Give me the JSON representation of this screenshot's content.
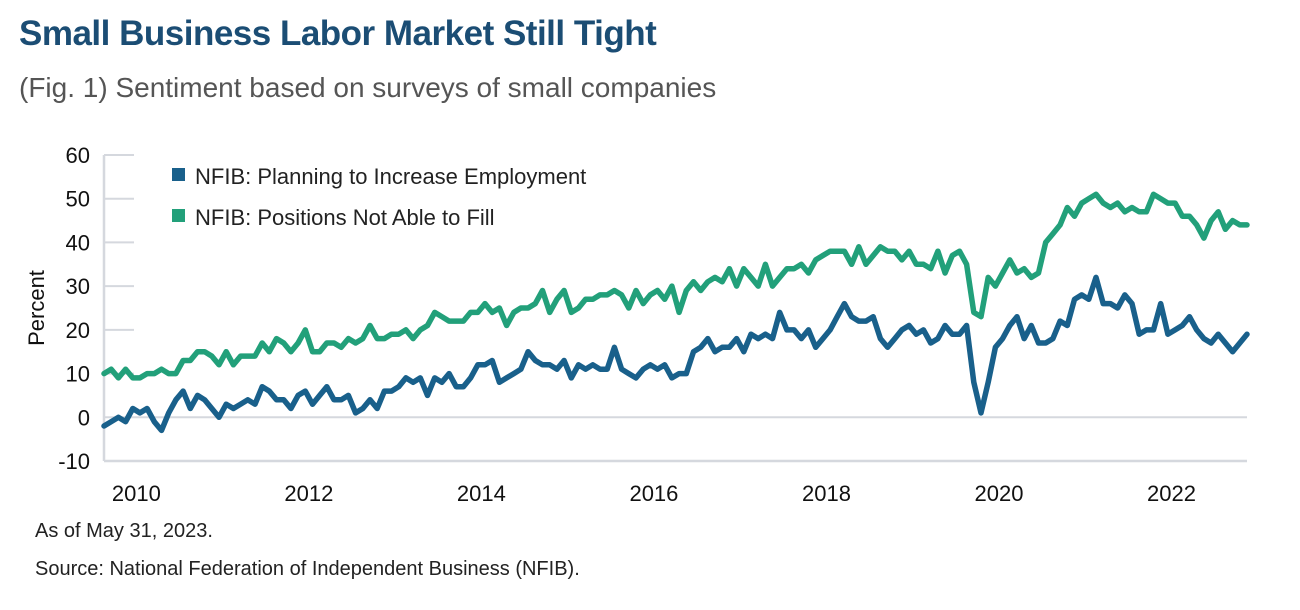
{
  "title": "Small Business Labor Market Still Tight",
  "subtitle": "(Fig. 1) Sentiment based on surveys of small companies",
  "footer": {
    "as_of": "As of May 31, 2023.",
    "source": "Source: National Federation of Independent Business (NFIB)."
  },
  "colors": {
    "title": "#1b4d74",
    "series_employment": "#19608b",
    "series_positions": "#22a07a",
    "axis": "#d5d8de"
  },
  "chart_data": {
    "type": "line",
    "title": "Small Business Labor Market Still Tight",
    "subtitle": "(Fig. 1) Sentiment based on surveys of small companies",
    "xlabel": "",
    "ylabel": "Percent",
    "ylim": [
      -10,
      60
    ],
    "yticks": [
      60,
      50,
      40,
      30,
      20,
      10,
      0,
      -10
    ],
    "xticks": [
      "2010",
      "2012",
      "2014",
      "2016",
      "2018",
      "2020",
      "2022"
    ],
    "x_start": "2010-02",
    "x_end": "2023-05",
    "frequency": "monthly",
    "grid": false,
    "zero_line": true,
    "legend_position": "top-left",
    "series": [
      {
        "name": "NFIB: Planning to Increase Employment",
        "color": "#19608b",
        "values": [
          -2,
          -1,
          0,
          -1,
          2,
          1,
          2,
          -1,
          -3,
          1,
          4,
          6,
          2,
          5,
          4,
          2,
          0,
          3,
          2,
          3,
          4,
          3,
          7,
          6,
          4,
          4,
          2,
          5,
          6,
          3,
          5,
          7,
          4,
          4,
          5,
          1,
          2,
          4,
          2,
          6,
          6,
          7,
          9,
          8,
          9,
          5,
          9,
          8,
          10,
          7,
          7,
          9,
          12,
          12,
          13,
          8,
          9,
          10,
          11,
          15,
          13,
          12,
          12,
          11,
          13,
          9,
          12,
          11,
          12,
          11,
          11,
          16,
          11,
          10,
          9,
          11,
          12,
          11,
          12,
          9,
          10,
          10,
          15,
          16,
          18,
          15,
          16,
          16,
          18,
          15,
          19,
          18,
          19,
          18,
          24,
          20,
          20,
          18,
          20,
          16,
          18,
          20,
          23,
          26,
          23,
          22,
          22,
          23,
          18,
          16,
          18,
          20,
          21,
          19,
          20,
          17,
          18,
          21,
          19,
          19,
          21,
          8,
          1,
          8,
          16,
          18,
          21,
          23,
          18,
          21,
          17,
          17,
          18,
          22,
          21,
          27,
          28,
          27,
          32,
          26,
          26,
          25,
          28,
          26,
          19,
          20,
          20,
          26,
          19,
          20,
          21,
          23,
          20,
          18,
          17,
          19,
          17,
          15,
          17,
          19
        ]
      },
      {
        "name": "NFIB: Positions Not Able to Fill",
        "color": "#22a07a",
        "values": [
          10,
          11,
          9,
          11,
          9,
          9,
          10,
          10,
          11,
          10,
          10,
          13,
          13,
          15,
          15,
          14,
          12,
          15,
          12,
          14,
          14,
          14,
          17,
          15,
          18,
          17,
          15,
          17,
          20,
          15,
          15,
          17,
          17,
          16,
          18,
          17,
          18,
          21,
          18,
          18,
          19,
          19,
          20,
          18,
          20,
          21,
          24,
          23,
          22,
          22,
          22,
          24,
          24,
          26,
          24,
          25,
          21,
          24,
          25,
          25,
          26,
          29,
          24,
          27,
          29,
          24,
          25,
          27,
          27,
          28,
          28,
          29,
          28,
          25,
          29,
          26,
          28,
          29,
          27,
          30,
          24,
          29,
          31,
          29,
          31,
          32,
          31,
          34,
          30,
          34,
          32,
          30,
          35,
          30,
          32,
          34,
          34,
          35,
          33,
          36,
          37,
          38,
          38,
          38,
          35,
          39,
          35,
          37,
          39,
          38,
          38,
          36,
          38,
          35,
          35,
          34,
          38,
          33,
          37,
          38,
          35,
          24,
          23,
          32,
          30,
          33,
          36,
          33,
          34,
          32,
          33,
          40,
          42,
          44,
          48,
          46,
          49,
          50,
          51,
          49,
          48,
          49,
          47,
          48,
          47,
          47,
          51,
          50,
          49,
          49,
          46,
          46,
          44,
          41,
          45,
          47,
          43,
          45,
          44,
          44
        ]
      }
    ]
  }
}
